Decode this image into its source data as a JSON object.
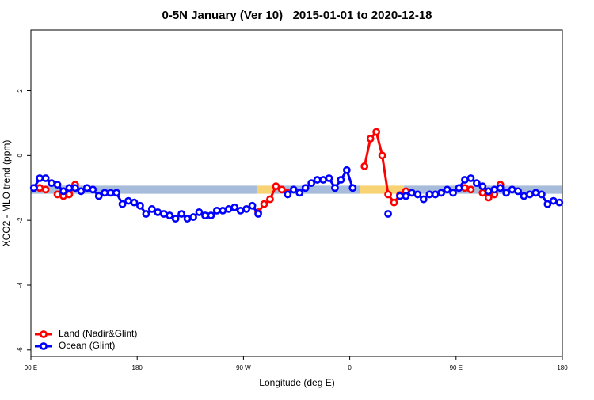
{
  "chart_data": {
    "type": "line",
    "title": "0-5N January (Ver 10)   2015-01-01 to 2020-12-18",
    "x_label": "Longitude (deg E)",
    "y_label": "XCO2 - MLO trend (ppm)",
    "xlim": [
      90,
      540
    ],
    "xticks": [
      {
        "value": 90,
        "label": "90 E"
      },
      180,
      {
        "value": 270,
        "label": "90 W"
      },
      {
        "value": 360,
        "label": "0"
      },
      {
        "value": 450,
        "label": "90 E"
      },
      {
        "value": 540,
        "label": "180"
      }
    ],
    "ylim": [
      -6.2,
      3.87
    ],
    "yticks": [
      -6,
      -4,
      -2,
      0,
      2
    ],
    "legend": "bottom-left",
    "band": {
      "ylim": [
        -1.18,
        -0.93
      ],
      "segments": [
        {
          "x": [
            90,
            282
          ],
          "color": "#a7bcda"
        },
        {
          "x": [
            282,
            296
          ],
          "color": "#f7d374"
        },
        {
          "x": [
            296,
            369
          ],
          "color": "#a7bcda"
        },
        {
          "x": [
            369,
            406
          ],
          "color": "#f7d374"
        },
        {
          "x": [
            406,
            540
          ],
          "color": "#a7bcda"
        }
      ]
    },
    "x": [
      92.5,
      97.5,
      102.5,
      107.5,
      112.5,
      117.5,
      122.5,
      127.5,
      132.5,
      137.5,
      142.5,
      147.5,
      152.5,
      157.5,
      162.5,
      167.5,
      172.5,
      177.5,
      182.5,
      187.5,
      192.5,
      197.5,
      202.5,
      207.5,
      212.5,
      217.5,
      222.5,
      227.5,
      232.5,
      237.5,
      242.5,
      247.5,
      252.5,
      257.5,
      262.5,
      267.5,
      272.5,
      277.5,
      282.5,
      287.5,
      292.5,
      297.5,
      302.5,
      307.5,
      312.5,
      317.5,
      322.5,
      327.5,
      332.5,
      337.5,
      342.5,
      347.5,
      352.5,
      357.5,
      362.5,
      367.5,
      372.5,
      377.5,
      382.5,
      387.5,
      392.5,
      397.5,
      402.5,
      407.5,
      412.5,
      417.5,
      422.5,
      427.5,
      432.5,
      437.5,
      442.5,
      447.5,
      452.5,
      457.5,
      462.5,
      467.5,
      472.5,
      477.5,
      482.5,
      487.5,
      492.5,
      497.5,
      502.5,
      507.5,
      512.5,
      517.5,
      522.5,
      527.5,
      532.5,
      537.5
    ],
    "series": [
      {
        "name": "Land (Nadir&Glint)",
        "color": "#ff0000",
        "values": [
          null,
          -1.0,
          -1.05,
          null,
          -1.2,
          -1.25,
          -1.2,
          -0.9,
          null,
          null,
          null,
          null,
          null,
          null,
          null,
          null,
          null,
          null,
          null,
          null,
          null,
          null,
          null,
          null,
          null,
          null,
          null,
          null,
          null,
          null,
          null,
          null,
          null,
          null,
          null,
          null,
          null,
          null,
          -1.75,
          -1.5,
          -1.35,
          -0.95,
          -1.05,
          -1.15,
          null,
          null,
          null,
          null,
          null,
          null,
          null,
          null,
          null,
          null,
          null,
          null,
          -0.33,
          0.52,
          0.73,
          0.0,
          -1.2,
          -1.45,
          -1.22,
          -1.1,
          null,
          null,
          null,
          null,
          null,
          null,
          null,
          null,
          null,
          -1.0,
          -1.05,
          null,
          -1.15,
          -1.3,
          -1.2,
          -0.9,
          null,
          null,
          null,
          null,
          null,
          null,
          null,
          null,
          null,
          null
        ]
      },
      {
        "name": "Ocean (Glint)",
        "color": "#0000ff",
        "values": [
          -1.0,
          -0.7,
          -0.7,
          -0.85,
          -0.9,
          -1.1,
          -1.0,
          -1.0,
          -1.1,
          -1.0,
          -1.05,
          -1.25,
          -1.15,
          -1.15,
          -1.15,
          -1.5,
          -1.4,
          -1.45,
          -1.55,
          -1.8,
          -1.65,
          -1.75,
          -1.8,
          -1.85,
          -1.95,
          -1.8,
          -1.95,
          -1.9,
          -1.75,
          -1.85,
          -1.85,
          -1.7,
          -1.7,
          -1.65,
          -1.6,
          -1.7,
          -1.65,
          -1.55,
          -1.8,
          null,
          null,
          null,
          null,
          -1.2,
          -1.05,
          -1.15,
          -1.0,
          -0.85,
          -0.75,
          -0.75,
          -0.7,
          -1.0,
          -0.75,
          -0.45,
          -1.0,
          null,
          null,
          null,
          null,
          null,
          -1.8,
          null,
          -1.25,
          -1.25,
          -1.15,
          -1.2,
          -1.35,
          -1.2,
          -1.2,
          -1.15,
          -1.05,
          -1.15,
          -1.0,
          -0.75,
          -0.7,
          -0.85,
          -0.95,
          -1.1,
          -1.05,
          -1.0,
          -1.15,
          -1.05,
          -1.1,
          -1.25,
          -1.2,
          -1.15,
          -1.2,
          -1.5,
          -1.4,
          -1.45
        ]
      }
    ]
  }
}
